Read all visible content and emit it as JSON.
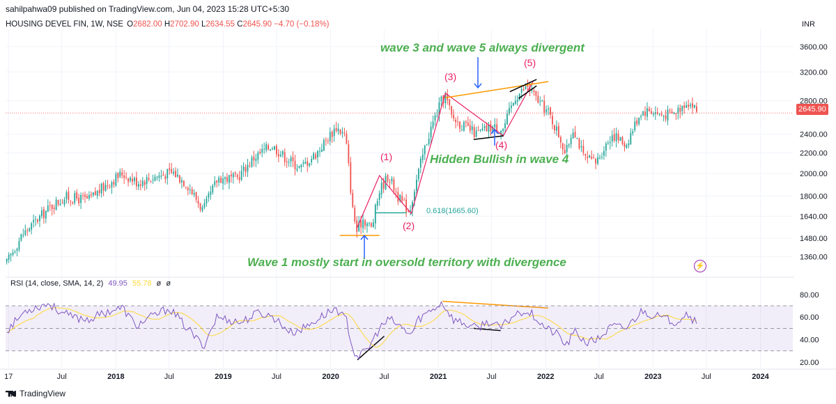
{
  "header": {
    "published": "sahilpahwa09 published on TradingView.com, Jun 04, 2023 15:28 UTC+5:30",
    "symbol": "HOUSING DEVEL FIN, 1W, NSE",
    "ohlc": [
      {
        "label": "O",
        "value": "2682.00"
      },
      {
        "label": "H",
        "value": "2702.90"
      },
      {
        "label": "L",
        "value": "2634.55"
      },
      {
        "label": "C",
        "value": "2645.90"
      }
    ],
    "change": "−4.70 (−0.18%)",
    "currency": "INR"
  },
  "annotations": {
    "wave35": "wave 3 and wave 5 always divergent",
    "hidden": "Hidden Bullish in wave 4",
    "wave1": "Wave 1 mostly start in oversold territory with divergence",
    "fib": "0.618(1665.60)",
    "w1": "(1)",
    "w2": "(2)",
    "w3": "(3)",
    "w4": "(4)",
    "w5": "(5)"
  },
  "rsi_header": {
    "label": "RSI (14, close, SMA, 14, 2)",
    "rsi": "49.95",
    "sma": "55.78",
    "v1": "ø",
    "v2": "ø"
  },
  "footer": {
    "brand": "TradingView"
  },
  "colors": {
    "up": "#26a69a",
    "down": "#ef5350",
    "annotation": "#4caf50",
    "wave_label": "#e91e63",
    "orange": "#ff9800",
    "blue": "#2962ff",
    "rsi": "#7e57c2",
    "rsi_ma": "#fdd835",
    "price_line": "#ef5350"
  },
  "chart_data": {
    "type": "candlestick",
    "price_axis": {
      "ticks": [
        1360,
        1480,
        1640,
        1800,
        2000,
        2200,
        2400,
        2800,
        3200,
        3600
      ],
      "tick_labels": [
        "1360.00",
        "1480.00",
        "1640.00",
        "1800.00",
        "2000.00",
        "2200.00",
        "2400.00",
        "2800.00",
        "3200.00",
        "3600.00"
      ],
      "scale": "log",
      "range": [
        1260,
        3900
      ],
      "current_price": 2645.9,
      "current_label": "2645.90"
    },
    "rsi_axis": {
      "range": [
        15,
        83
      ],
      "ticks": [
        20,
        40,
        60,
        80
      ],
      "tick_labels": [
        "20.00",
        "40.00",
        "60.00",
        "80.00"
      ],
      "band": [
        30,
        70
      ],
      "mid": 50
    },
    "time_axis": {
      "labels": [
        "17",
        "Jul",
        "2018",
        "Jul",
        "2019",
        "Jul",
        "2020",
        "Jul",
        "2021",
        "Jul",
        "2022",
        "Jul",
        "2023",
        "Jul",
        "2024"
      ],
      "dates": [
        "2017-01",
        "2017-07",
        "2018-01",
        "2018-07",
        "2019-01",
        "2019-07",
        "2020-01",
        "2020-07",
        "2021-01",
        "2021-07",
        "2022-01",
        "2022-07",
        "2023-01",
        "2023-07",
        "2024-01"
      ],
      "range": [
        "2016-12-22",
        "2024-04-20"
      ]
    },
    "price_waypoints": [
      [
        "2016-12-26",
        1320
      ],
      [
        "2017-02-15",
        1500
      ],
      [
        "2017-06-01",
        1730
      ],
      [
        "2017-07-15",
        1790
      ],
      [
        "2017-10-01",
        1770
      ],
      [
        "2017-12-01",
        1900
      ],
      [
        "2018-01-22",
        2000
      ],
      [
        "2018-03-15",
        1920
      ],
      [
        "2018-05-15",
        1970
      ],
      [
        "2018-07-15",
        2010
      ],
      [
        "2018-09-01",
        1900
      ],
      [
        "2018-10-25",
        1680
      ],
      [
        "2018-12-15",
        1960
      ],
      [
        "2019-02-15",
        1950
      ],
      [
        "2019-04-15",
        2150
      ],
      [
        "2019-06-15",
        2280
      ],
      [
        "2019-08-01",
        2150
      ],
      [
        "2019-09-20",
        2050
      ],
      [
        "2019-11-15",
        2200
      ],
      [
        "2020-01-20",
        2480
      ],
      [
        "2020-02-20",
        2380
      ],
      [
        "2020-03-15",
        1700
      ],
      [
        "2020-03-30",
        1530
      ],
      [
        "2020-04-20",
        1620
      ],
      [
        "2020-05-20",
        1550
      ],
      [
        "2020-06-15",
        1850
      ],
      [
        "2020-07-15",
        1980
      ],
      [
        "2020-08-20",
        1780
      ],
      [
        "2020-09-25",
        1680
      ],
      [
        "2020-10-20",
        1950
      ],
      [
        "2020-11-25",
        2350
      ],
      [
        "2021-01-10",
        2780
      ],
      [
        "2021-01-25",
        2870
      ],
      [
        "2021-02-15",
        2600
      ],
      [
        "2021-03-15",
        2520
      ],
      [
        "2021-05-10",
        2400
      ],
      [
        "2021-07-01",
        2480
      ],
      [
        "2021-08-10",
        2460
      ],
      [
        "2021-09-20",
        2850
      ],
      [
        "2021-11-01",
        3000
      ],
      [
        "2021-11-25",
        2850
      ],
      [
        "2022-01-10",
        2650
      ],
      [
        "2022-02-20",
        2350
      ],
      [
        "2022-03-10",
        2180
      ],
      [
        "2022-04-05",
        2480
      ],
      [
        "2022-05-10",
        2150
      ],
      [
        "2022-06-20",
        2100
      ],
      [
        "2022-08-15",
        2400
      ],
      [
        "2022-10-01",
        2280
      ],
      [
        "2022-11-20",
        2660
      ],
      [
        "2022-12-20",
        2680
      ],
      [
        "2023-02-01",
        2620
      ],
      [
        "2023-03-15",
        2640
      ],
      [
        "2023-04-25",
        2800
      ],
      [
        "2023-05-20",
        2720
      ],
      [
        "2023-06-02",
        2646
      ]
    ],
    "rsi_waypoints": [
      [
        "2016-12-26",
        48
      ],
      [
        "2017-03-01",
        66
      ],
      [
        "2017-05-15",
        72
      ],
      [
        "2017-06-20",
        66
      ],
      [
        "2017-08-01",
        60
      ],
      [
        "2017-10-01",
        58
      ],
      [
        "2017-12-15",
        66
      ],
      [
        "2018-01-25",
        68
      ],
      [
        "2018-03-10",
        52
      ],
      [
        "2018-05-01",
        60
      ],
      [
        "2018-07-01",
        68
      ],
      [
        "2018-09-01",
        50
      ],
      [
        "2018-10-25",
        34
      ],
      [
        "2018-12-10",
        60
      ],
      [
        "2019-03-01",
        55
      ],
      [
        "2019-05-01",
        64
      ],
      [
        "2019-06-20",
        60
      ],
      [
        "2019-08-20",
        46
      ],
      [
        "2019-10-01",
        50
      ],
      [
        "2019-12-10",
        62
      ],
      [
        "2020-01-20",
        68
      ],
      [
        "2020-02-25",
        56
      ],
      [
        "2020-03-20",
        28
      ],
      [
        "2020-04-10",
        25
      ],
      [
        "2020-05-10",
        33
      ],
      [
        "2020-06-15",
        50
      ],
      [
        "2020-07-20",
        58
      ],
      [
        "2020-09-01",
        50
      ],
      [
        "2020-10-01",
        44
      ],
      [
        "2020-10-25",
        58
      ],
      [
        "2020-12-01",
        65
      ],
      [
        "2021-01-15",
        73
      ],
      [
        "2021-02-20",
        58
      ],
      [
        "2021-04-01",
        54
      ],
      [
        "2021-05-10",
        50
      ],
      [
        "2021-06-20",
        56
      ],
      [
        "2021-08-01",
        50
      ],
      [
        "2021-09-15",
        62
      ],
      [
        "2021-10-20",
        66
      ],
      [
        "2021-11-20",
        62
      ],
      [
        "2022-01-01",
        50
      ],
      [
        "2022-02-15",
        44
      ],
      [
        "2022-03-10",
        34
      ],
      [
        "2022-04-10",
        47
      ],
      [
        "2022-05-20",
        37
      ],
      [
        "2022-06-25",
        40
      ],
      [
        "2022-08-15",
        52
      ],
      [
        "2022-10-01",
        50
      ],
      [
        "2022-11-25",
        66
      ],
      [
        "2022-12-20",
        63
      ],
      [
        "2023-02-10",
        58
      ],
      [
        "2023-03-20",
        56
      ],
      [
        "2023-04-25",
        64
      ],
      [
        "2023-05-20",
        57
      ],
      [
        "2023-06-02",
        50
      ]
    ],
    "rsi_ma_value": 55.78,
    "drawings": [
      {
        "name": "wave-path-1-2",
        "kind": "polyline",
        "color": "#e91e63",
        "points": [
          [
            "2020-03-30",
            1550
          ],
          [
            "2020-06-15",
            1980
          ],
          [
            "2020-10-01",
            1660
          ],
          [
            "2021-01-25",
            2900
          ],
          [
            "2021-08-10",
            2380
          ],
          [
            "2021-11-20",
            3070
          ]
        ]
      },
      {
        "name": "wave3-wave5-trendline",
        "kind": "line",
        "color": "#ff9800",
        "points": [
          [
            "2021-01-25",
            2840
          ],
          [
            "2022-01-10",
            3060
          ]
        ]
      },
      {
        "name": "wave4-support-line",
        "kind": "line",
        "color": "#000000",
        "points": [
          [
            "2021-05-01",
            2340
          ],
          [
            "2021-08-10",
            2380
          ]
        ]
      },
      {
        "name": "wave5-channel-line-1",
        "kind": "line",
        "color": "#000000",
        "points": [
          [
            "2021-09-01",
            2920
          ],
          [
            "2021-12-01",
            3090
          ]
        ]
      },
      {
        "name": "wave5-channel-line-2",
        "kind": "line",
        "color": "#000000",
        "points": [
          [
            "2021-10-01",
            2830
          ],
          [
            "2021-12-01",
            3000
          ]
        ]
      },
      {
        "name": "oversold-base-line",
        "kind": "line",
        "color": "#ff9800",
        "points": [
          [
            "2020-02-01",
            1500
          ],
          [
            "2020-06-15",
            1500
          ]
        ]
      },
      {
        "name": "fib-level-line",
        "kind": "line",
        "color": "#26a69a",
        "points": [
          [
            "2020-06-01",
            1665.6
          ],
          [
            "2020-09-15",
            1665.6
          ]
        ]
      },
      {
        "name": "rsi-wave35-divergence-line",
        "kind": "rsi-line",
        "color": "#ff9800",
        "points": [
          [
            "2021-01-15",
            74
          ],
          [
            "2022-01-10",
            68
          ]
        ]
      },
      {
        "name": "rsi-wave4-line",
        "kind": "rsi-line",
        "color": "#000000",
        "points": [
          [
            "2021-05-01",
            50
          ],
          [
            "2021-08-01",
            48
          ]
        ]
      },
      {
        "name": "rsi-wave1-divergence-line",
        "kind": "rsi-line",
        "color": "#000000",
        "points": [
          [
            "2020-04-01",
            22
          ],
          [
            "2020-07-01",
            43
          ]
        ]
      }
    ]
  }
}
